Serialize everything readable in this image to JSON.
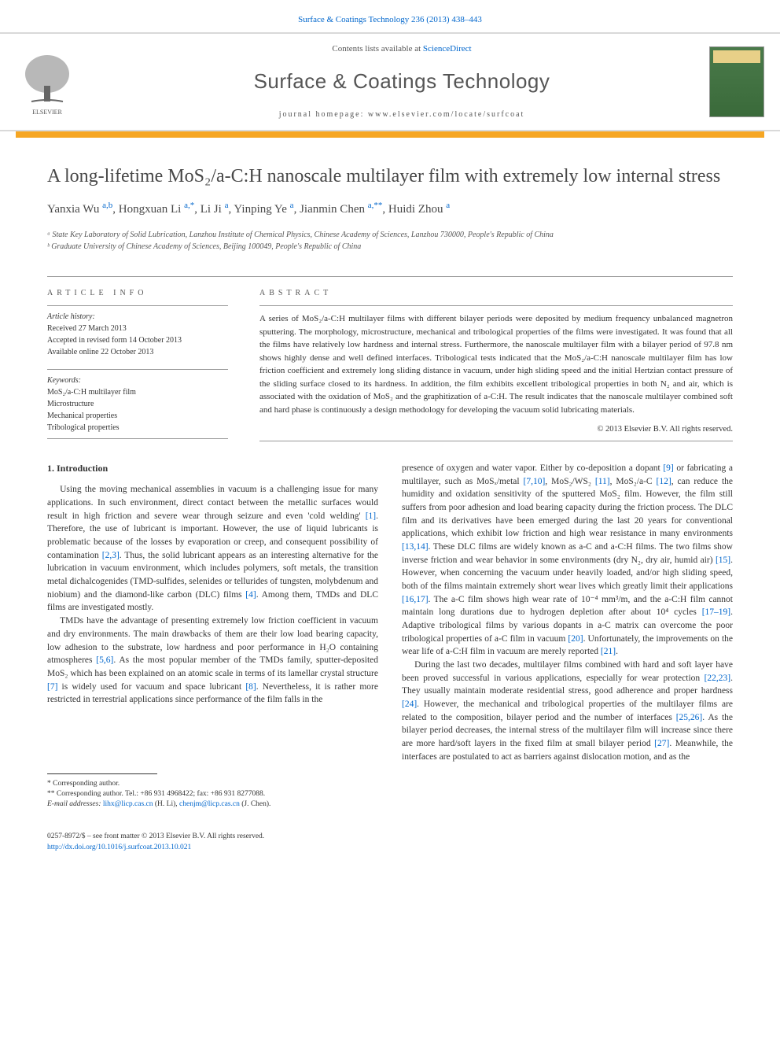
{
  "top_link": {
    "journal": "Surface & Coatings Technology",
    "citation": "236 (2013) 438–443"
  },
  "header": {
    "sciencedirect_prefix": "Contents lists available at ",
    "sciencedirect": "ScienceDirect",
    "journal_name": "Surface & Coatings Technology",
    "homepage_prefix": "journal homepage: ",
    "homepage_url": "www.elsevier.com/locate/surfcoat"
  },
  "title": "A long-lifetime MoS₂/a-C:H nanoscale multilayer film with extremely low internal stress",
  "authors_html": "Yanxia Wu <sup class='mark'>a,b</sup>, Hongxuan Li <sup class='mark'>a,</sup><span class='mark'>*</span>, Li Ji <sup class='mark'>a</sup>, Yinping Ye <sup class='mark'>a</sup>, Jianmin Chen <sup class='mark'>a,</sup><span class='mark'>**</span>, Huidi Zhou <sup class='mark'>a</sup>",
  "affiliations": [
    "ᵃ State Key Laboratory of Solid Lubrication, Lanzhou Institute of Chemical Physics, Chinese Academy of Sciences, Lanzhou 730000, People's Republic of China",
    "ᵇ Graduate University of Chinese Academy of Sciences, Beijing 100049, People's Republic of China"
  ],
  "article_info": {
    "heading": "ARTICLE INFO",
    "history_label": "Article history:",
    "history": [
      "Received 27 March 2013",
      "Accepted in revised form 14 October 2013",
      "Available online 22 October 2013"
    ],
    "keywords_label": "Keywords:",
    "keywords": [
      "MoS₂/a-C:H multilayer film",
      "Microstructure",
      "Mechanical properties",
      "Tribological properties"
    ]
  },
  "abstract": {
    "heading": "ABSTRACT",
    "text": "A series of MoS₂/a-C:H multilayer films with different bilayer periods were deposited by medium frequency unbalanced magnetron sputtering. The morphology, microstructure, mechanical and tribological properties of the films were investigated. It was found that all the films have relatively low hardness and internal stress. Furthermore, the nanoscale multilayer film with a bilayer period of 97.8 nm shows highly dense and well defined interfaces. Tribological tests indicated that the MoS₂/a-C:H nanoscale multilayer film has low friction coefficient and extremely long sliding distance in vacuum, under high sliding speed and the initial Hertzian contact pressure of the sliding surface closed to its hardness. In addition, the film exhibits excellent tribological properties in both N₂ and air, which is associated with the oxidation of MoS₂ and the graphitization of a-C:H. The result indicates that the nanoscale multilayer combined soft and hard phase is continuously a design methodology for developing the vacuum solid lubricating materials.",
    "copyright": "© 2013 Elsevier B.V. All rights reserved."
  },
  "intro_heading": "1. Introduction",
  "col1": {
    "p1": "Using the moving mechanical assemblies in vacuum is a challenging issue for many applications. In such environment, direct contact between the metallic surfaces would result in high friction and severe wear through seizure and even 'cold welding' [1]. Therefore, the use of lubricant is important. However, the use of liquid lubricants is problematic because of the losses by evaporation or creep, and consequent possibility of contamination [2,3]. Thus, the solid lubricant appears as an interesting alternative for the lubrication in vacuum environment, which includes polymers, soft metals, the transition metal dichalcogenides (TMD-sulfides, selenides or tellurides of tungsten, molybdenum and niobium) and the diamond-like carbon (DLC) films [4]. Among them, TMDs and DLC films are investigated mostly.",
    "p2": "TMDs have the advantage of presenting extremely low friction coefficient in vacuum and dry environments. The main drawbacks of them are their low load bearing capacity, low adhesion to the substrate, low hardness and poor performance in H₂O containing atmospheres [5,6]. As the most popular member of the TMDs family, sputter-deposited MoS₂ which has been explained on an atomic scale in terms of its lamellar crystal structure [7] is widely used for vacuum and space lubricant [8]. Nevertheless, it is rather more restricted in terrestrial applications since performance of the film falls in the"
  },
  "col2": {
    "p1": "presence of oxygen and water vapor. Either by co-deposition a dopant [9] or fabricating a multilayer, such as MoSₓ/metal [7,10], MoS₂/WS₂ [11], MoS₂/a-C [12], can reduce the humidity and oxidation sensitivity of the sputtered MoS₂ film. However, the film still suffers from poor adhesion and load bearing capacity during the friction process. The DLC film and its derivatives have been emerged during the last 20 years for conventional applications, which exhibit low friction and high wear resistance in many environments [13,14]. These DLC films are widely known as a-C and a-C:H films. The two films show inverse friction and wear behavior in some environments (dry N₂, dry air, humid air) [15]. However, when concerning the vacuum under heavily loaded, and/or high sliding speed, both of the films maintain extremely short wear lives which greatly limit their applications [16,17]. The a-C film shows high wear rate of 10⁻⁴ mm³/m, and the a-C:H film cannot maintain long durations due to hydrogen depletion after about 10⁴ cycles [17–19]. Adaptive tribological films by various dopants in a-C matrix can overcome the poor tribological properties of a-C film in vacuum [20]. Unfortunately, the improvements on the wear life of a-C:H film in vacuum are merely reported [21].",
    "p2": "During the last two decades, multilayer films combined with hard and soft layer have been proved successful in various applications, especially for wear protection [22,23]. They usually maintain moderate residential stress, good adherence and proper hardness [24]. However, the mechanical and tribological properties of the multilayer films are related to the composition, bilayer period and the number of interfaces [25,26]. As the bilayer period decreases, the internal stress of the multilayer film will increase since there are more hard/soft layers in the fixed film at small bilayer period [27]. Meanwhile, the interfaces are postulated to act as barriers against dislocation motion, and as the"
  },
  "footnotes": {
    "corr1": "* Corresponding author.",
    "corr2": "** Corresponding author. Tel.: +86 931 4968422; fax: +86 931 8277088.",
    "email_label": "E-mail addresses:",
    "email1": "lihx@licp.cas.cn",
    "email1_name": "(H. Li),",
    "email2": "chenjm@licp.cas.cn",
    "email2_name": "(J. Chen)."
  },
  "footer": {
    "left1": "0257-8972/$ – see front matter © 2013 Elsevier B.V. All rights reserved.",
    "doi": "http://dx.doi.org/10.1016/j.surfcoat.2013.10.021"
  },
  "refs": {
    "r1": "[1]",
    "r23": "[2,3]",
    "r4": "[4]",
    "r56": "[5,6]",
    "r7": "[7]",
    "r8": "[8]",
    "r9": "[9]",
    "r710": "[7,10]",
    "r11": "[11]",
    "r12": "[12]",
    "r1314": "[13,14]",
    "r15": "[15]",
    "r1617": "[16,17]",
    "r1719": "[17–19]",
    "r20": "[20]",
    "r21": "[21]",
    "r2223": "[22,23]",
    "r24": "[24]",
    "r2526": "[25,26]",
    "r27": "[27]"
  },
  "colors": {
    "link": "#0066cc",
    "accent": "#f6a623",
    "text": "#333333",
    "heading": "#484848",
    "rule": "#999999"
  }
}
